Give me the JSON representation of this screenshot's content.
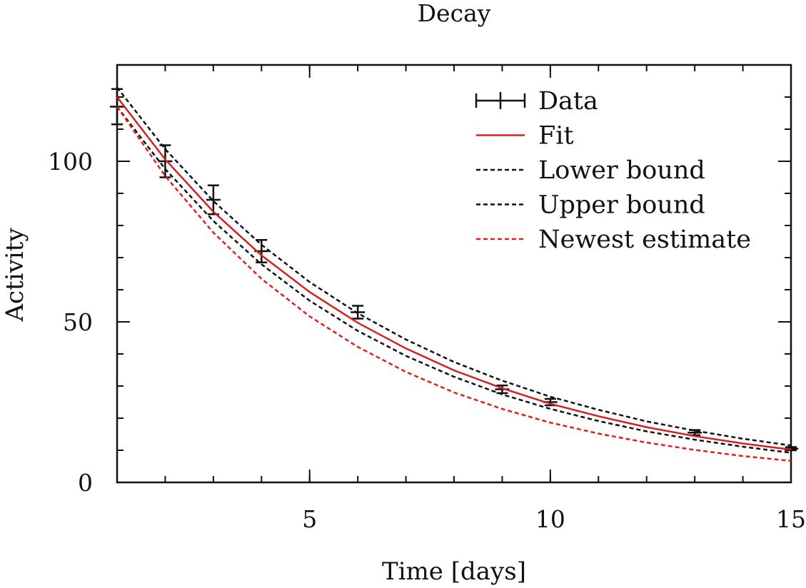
{
  "chart_data": {
    "type": "line",
    "title": "Decay",
    "xlabel": "Time [days]",
    "ylabel": "Activity",
    "xlim": [
      1,
      15
    ],
    "ylim": [
      0,
      130
    ],
    "xticks": [
      5,
      10,
      15
    ],
    "yticks": [
      0,
      50,
      100
    ],
    "xminor_step": 1,
    "yminor_step": 10,
    "grid": false,
    "legend_position": "top-right",
    "series": [
      {
        "name": "Data",
        "kind": "errorbar",
        "color": "#111111",
        "x": [
          1,
          2,
          3,
          4,
          6,
          9,
          10,
          13,
          15
        ],
        "y": [
          117,
          100,
          88,
          72,
          53,
          29,
          25,
          15.5,
          10.5
        ],
        "yerr": [
          5.5,
          5,
          4.5,
          3.5,
          2,
          1.2,
          1,
          0.8,
          0.5
        ]
      },
      {
        "name": "Fit",
        "kind": "curve",
        "color": "#d62020",
        "dash": false,
        "x": [
          1,
          2,
          3,
          4,
          5,
          6,
          7,
          8,
          9,
          10,
          11,
          12,
          13,
          14,
          15
        ],
        "y": [
          120,
          100.6,
          84.3,
          70.7,
          59.3,
          49.7,
          41.7,
          34.9,
          29.3,
          24.5,
          20.6,
          17.2,
          14.4,
          12.1,
          10.2
        ]
      },
      {
        "name": "Lower bound",
        "kind": "curve",
        "color": "#111111",
        "dash": true,
        "x": [
          1,
          2,
          3,
          4,
          5,
          6,
          7,
          8,
          9,
          10,
          11,
          12,
          13,
          14,
          15
        ],
        "y": [
          117,
          97.6,
          81.4,
          67.9,
          56.6,
          47.2,
          39.4,
          32.9,
          27.4,
          22.9,
          19.1,
          15.9,
          13.3,
          11.1,
          9.2
        ]
      },
      {
        "name": "Upper bound",
        "kind": "curve",
        "color": "#111111",
        "dash": true,
        "x": [
          1,
          2,
          3,
          4,
          5,
          6,
          7,
          8,
          9,
          10,
          11,
          12,
          13,
          14,
          15
        ],
        "y": [
          123,
          103.8,
          87.6,
          74,
          62.4,
          52.7,
          44.5,
          37.5,
          31.7,
          26.7,
          22.6,
          19,
          16.1,
          13.6,
          11.5
        ]
      },
      {
        "name": "Newest estimate",
        "kind": "curve",
        "color": "#e02020",
        "dash": true,
        "x": [
          1,
          2,
          3,
          4,
          5,
          6,
          7,
          8,
          9,
          10,
          11,
          12,
          13,
          14,
          15
        ],
        "y": [
          117,
          95.4,
          77.8,
          63.4,
          51.7,
          42.2,
          34.4,
          28,
          22.9,
          18.6,
          15.2,
          12.4,
          10.1,
          8.2,
          6.7
        ]
      }
    ]
  }
}
